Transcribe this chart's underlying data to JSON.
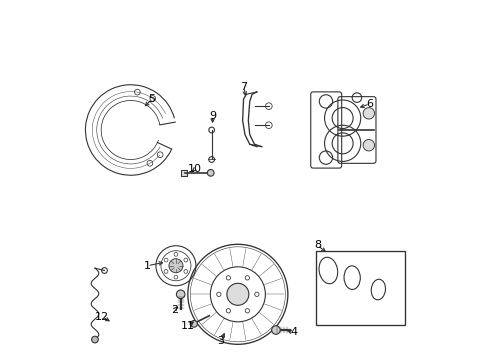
{
  "bg_color": "#ffffff",
  "line_color": "#333333",
  "line_width": 0.8,
  "label_fontsize": 8,
  "label_color": "#000000",
  "labels_positions": {
    "1": [
      1.45,
      4.45,
      1.85,
      4.53
    ],
    "2": [
      2.02,
      3.52,
      2.12,
      3.65
    ],
    "3": [
      3.0,
      2.88,
      3.1,
      3.1
    ],
    "4": [
      4.52,
      3.05,
      4.32,
      3.1
    ],
    "5": [
      1.55,
      7.95,
      1.35,
      7.75
    ],
    "6": [
      6.12,
      7.85,
      5.85,
      7.75
    ],
    "7": [
      3.48,
      8.2,
      3.52,
      7.95
    ],
    "8": [
      5.02,
      4.88,
      5.25,
      4.7
    ],
    "9": [
      2.82,
      7.6,
      2.82,
      7.38
    ],
    "10": [
      2.45,
      6.48,
      2.38,
      6.42
    ],
    "11": [
      2.3,
      3.18,
      2.48,
      3.32
    ],
    "12": [
      0.5,
      3.38,
      0.72,
      3.25
    ]
  }
}
